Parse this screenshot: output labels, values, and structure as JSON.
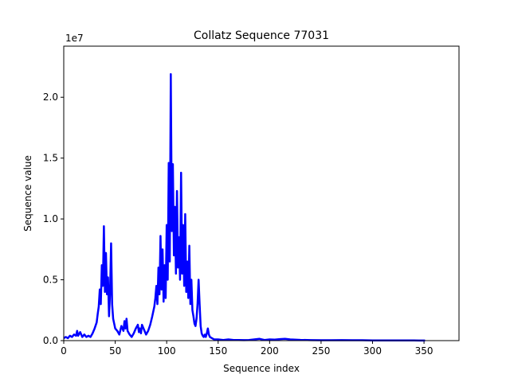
{
  "chart_data": {
    "type": "line",
    "title": "Collatz Sequence 77031",
    "xlabel": "Sequence index",
    "ylabel": "Sequence value",
    "offset_label": "1e7",
    "xlim": [
      0,
      384
    ],
    "ylim": [
      0,
      2.42
    ],
    "y_unit_multiplier": 10000000,
    "x_ticks": [
      0,
      50,
      100,
      150,
      200,
      250,
      300,
      350
    ],
    "y_ticks": [
      0,
      0.5,
      1.0,
      1.5,
      2.0
    ],
    "y_tick_labels": [
      "0.0",
      "0.5",
      "1.0",
      "1.5",
      "2.0"
    ],
    "grid": false,
    "legend": "none",
    "series": [
      {
        "color": "#0000ff",
        "x": [
          0,
          2,
          4,
          6,
          8,
          10,
          12,
          13,
          14,
          16,
          18,
          20,
          22,
          24,
          26,
          28,
          30,
          32,
          33,
          34,
          35,
          36,
          37,
          38,
          39,
          40,
          41,
          42,
          43,
          44,
          45,
          46,
          47,
          48,
          49,
          50,
          52,
          54,
          56,
          58,
          59,
          60,
          61,
          62,
          64,
          66,
          68,
          70,
          72,
          73,
          74,
          75,
          76,
          78,
          80,
          82,
          84,
          86,
          88,
          89,
          90,
          91,
          92,
          93,
          94,
          95,
          96,
          97,
          98,
          99,
          100,
          101,
          102,
          103,
          104,
          105,
          106,
          107,
          108,
          109,
          110,
          111,
          112,
          113,
          114,
          115,
          116,
          117,
          118,
          119,
          120,
          121,
          122,
          123,
          124,
          125,
          126,
          127,
          128,
          129,
          130,
          131,
          132,
          133,
          134,
          135,
          136,
          137,
          138,
          139,
          140,
          141,
          142,
          144,
          146,
          148,
          150,
          155,
          160,
          165,
          170,
          175,
          180,
          185,
          190,
          195,
          200,
          205,
          210,
          215,
          220,
          230,
          240,
          250,
          260,
          270,
          280,
          290,
          300,
          310,
          320,
          330,
          340,
          345,
          350,
          351
        ],
        "y": [
          0.02,
          0.03,
          0.02,
          0.04,
          0.03,
          0.05,
          0.04,
          0.08,
          0.04,
          0.07,
          0.03,
          0.05,
          0.03,
          0.04,
          0.03,
          0.06,
          0.1,
          0.15,
          0.22,
          0.28,
          0.42,
          0.3,
          0.62,
          0.45,
          0.94,
          0.4,
          0.72,
          0.38,
          0.52,
          0.2,
          0.4,
          0.8,
          0.3,
          0.18,
          0.14,
          0.1,
          0.08,
          0.05,
          0.12,
          0.08,
          0.16,
          0.1,
          0.18,
          0.08,
          0.05,
          0.03,
          0.06,
          0.1,
          0.13,
          0.07,
          0.1,
          0.06,
          0.13,
          0.09,
          0.05,
          0.08,
          0.13,
          0.2,
          0.28,
          0.35,
          0.45,
          0.3,
          0.6,
          0.38,
          0.86,
          0.42,
          0.75,
          0.32,
          0.62,
          0.35,
          0.95,
          0.5,
          1.46,
          0.65,
          2.19,
          0.9,
          1.45,
          0.7,
          1.1,
          0.55,
          1.23,
          0.6,
          0.85,
          0.5,
          1.38,
          0.55,
          0.95,
          0.45,
          1.04,
          0.4,
          0.65,
          0.35,
          0.78,
          0.3,
          0.5,
          0.25,
          0.2,
          0.14,
          0.12,
          0.18,
          0.3,
          0.5,
          0.3,
          0.12,
          0.06,
          0.04,
          0.03,
          0.05,
          0.03,
          0.06,
          0.1,
          0.05,
          0.03,
          0.02,
          0.01,
          0.01,
          0.01,
          0.005,
          0.01,
          0.005,
          0.005,
          0.004,
          0.005,
          0.01,
          0.015,
          0.005,
          0.01,
          0.008,
          0.012,
          0.015,
          0.01,
          0.006,
          0.004,
          0.003,
          0.003,
          0.004,
          0.003,
          0.003,
          0.002,
          0.002,
          0.002,
          0.002,
          0.002,
          0.001,
          0.001,
          0.001
        ]
      }
    ]
  }
}
